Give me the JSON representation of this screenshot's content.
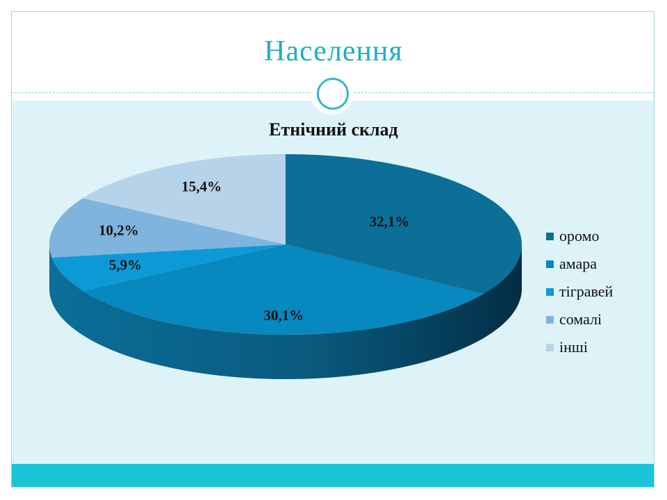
{
  "slide": {
    "title": "Населення"
  },
  "chart_data": {
    "type": "pie",
    "title": "Етнічний склад",
    "legend_position": "right",
    "categories": [
      "оромо",
      "амара",
      "тігравей",
      "сомалі",
      "інші"
    ],
    "values": [
      32.1,
      30.1,
      5.9,
      10.2,
      15.4
    ],
    "data_labels": [
      "32,1%",
      "30,1%",
      "5,9%",
      "10,2%",
      "15,4%"
    ],
    "colors": [
      "#0b6f98",
      "#0788bf",
      "#0c9ad6",
      "#7eb4dd",
      "#b7d3ea"
    ]
  }
}
